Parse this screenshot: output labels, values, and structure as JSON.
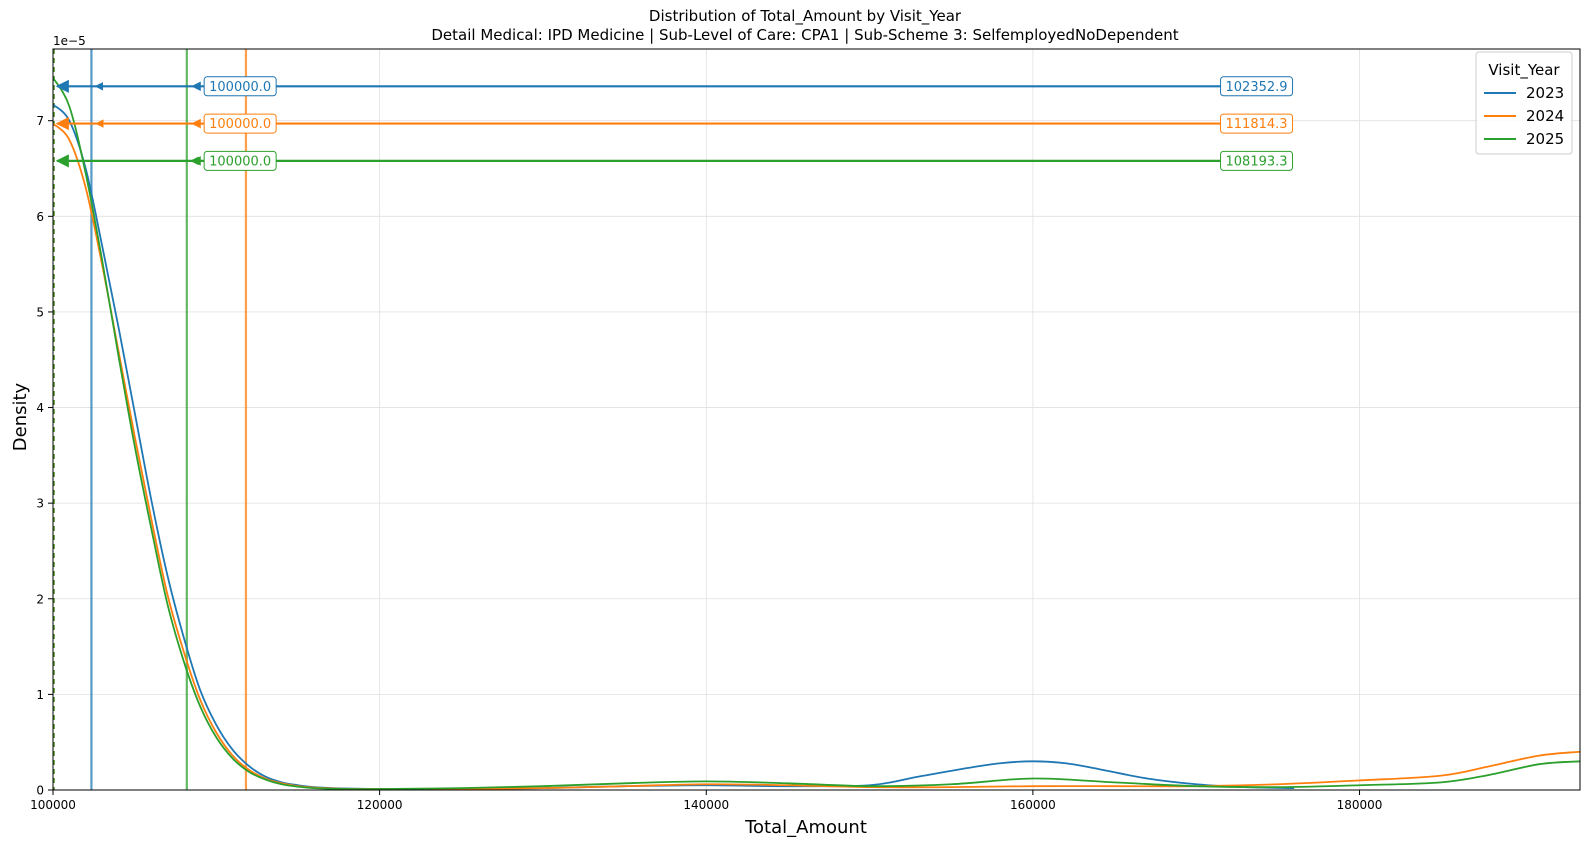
{
  "chart_data": {
    "type": "line",
    "title": "Distribution of Total_Amount by Visit_Year",
    "subtitle": "Detail Medical: IPD Medicine | Sub-Level of Care: CPA1 | Sub-Scheme 3: SelfemployedNoDependent",
    "xlabel": "Total_Amount",
    "ylabel": "Density",
    "y_multiplier": "1e−5",
    "xlim": [
      100000,
      193500
    ],
    "ylim": [
      0,
      7.75
    ],
    "x_ticks": [
      100000,
      120000,
      140000,
      160000,
      180000
    ],
    "x_tick_labels": [
      "100000",
      "120000",
      "140000",
      "160000",
      "180000"
    ],
    "y_ticks": [
      0,
      1,
      2,
      3,
      4,
      5,
      6,
      7
    ],
    "y_tick_labels": [
      "0",
      "1",
      "2",
      "3",
      "4",
      "5",
      "6",
      "7"
    ],
    "grid": true,
    "legend": {
      "title": "Visit_Year",
      "position": "top-right"
    },
    "series": [
      {
        "name": "2023",
        "color": "#1f77b4",
        "mean": 102352.9,
        "median": 100000.0,
        "mean_label": "102352.9",
        "median_label": "100000.0",
        "arrow_y": 7.36,
        "x": [
          100000,
          101000,
          102000,
          103000,
          104000,
          105000,
          106000,
          107000,
          108000,
          109000,
          110000,
          111000,
          112000,
          113000,
          114000,
          115000,
          116000,
          118000,
          120000,
          125000,
          130000,
          135000,
          140000,
          145000,
          150000,
          153000,
          156000,
          158000,
          160000,
          162000,
          164000,
          167000,
          170000,
          173000,
          176000
        ],
        "y": [
          7.17,
          7.0,
          6.5,
          5.7,
          4.85,
          3.95,
          3.05,
          2.25,
          1.6,
          1.05,
          0.68,
          0.42,
          0.25,
          0.14,
          0.08,
          0.05,
          0.03,
          0.015,
          0.01,
          0.01,
          0.02,
          0.04,
          0.05,
          0.04,
          0.05,
          0.14,
          0.23,
          0.28,
          0.3,
          0.28,
          0.22,
          0.12,
          0.06,
          0.03,
          0.02
        ]
      },
      {
        "name": "2024",
        "color": "#ff7f0e",
        "mean": 111814.3,
        "median": 100000.0,
        "mean_label": "111814.3",
        "median_label": "100000.0",
        "arrow_y": 6.97,
        "x": [
          100000,
          101000,
          102000,
          103000,
          104000,
          105000,
          106000,
          107000,
          108000,
          109000,
          110000,
          111000,
          112000,
          113000,
          114000,
          115000,
          116000,
          118000,
          120000,
          125000,
          130000,
          135000,
          140000,
          145000,
          150000,
          155000,
          160000,
          165000,
          170000,
          175000,
          180000,
          185000,
          188000,
          191000,
          193500
        ],
        "y": [
          6.97,
          6.8,
          6.3,
          5.5,
          4.6,
          3.7,
          2.85,
          2.05,
          1.45,
          0.95,
          0.6,
          0.36,
          0.21,
          0.12,
          0.07,
          0.04,
          0.025,
          0.012,
          0.01,
          0.01,
          0.02,
          0.04,
          0.06,
          0.05,
          0.03,
          0.03,
          0.04,
          0.04,
          0.04,
          0.06,
          0.1,
          0.15,
          0.25,
          0.36,
          0.4
        ]
      },
      {
        "name": "2025",
        "color": "#2ca02c",
        "mean": 108193.3,
        "median": 100000.0,
        "mean_label": "108193.3",
        "median_label": "100000.0",
        "arrow_y": 6.58,
        "x": [
          100000,
          101000,
          102000,
          103000,
          104000,
          105000,
          106000,
          107000,
          108000,
          109000,
          110000,
          111000,
          112000,
          113000,
          114000,
          115000,
          116000,
          118000,
          120000,
          125000,
          130000,
          135000,
          140000,
          145000,
          150000,
          155000,
          160000,
          165000,
          170000,
          175000,
          180000,
          185000,
          188000,
          191000,
          193500
        ],
        "y": [
          7.45,
          7.15,
          6.45,
          5.55,
          4.55,
          3.6,
          2.75,
          1.95,
          1.35,
          0.88,
          0.55,
          0.33,
          0.19,
          0.11,
          0.06,
          0.035,
          0.02,
          0.01,
          0.01,
          0.02,
          0.04,
          0.07,
          0.09,
          0.07,
          0.04,
          0.06,
          0.12,
          0.08,
          0.04,
          0.03,
          0.05,
          0.08,
          0.16,
          0.27,
          0.3
        ]
      }
    ]
  }
}
